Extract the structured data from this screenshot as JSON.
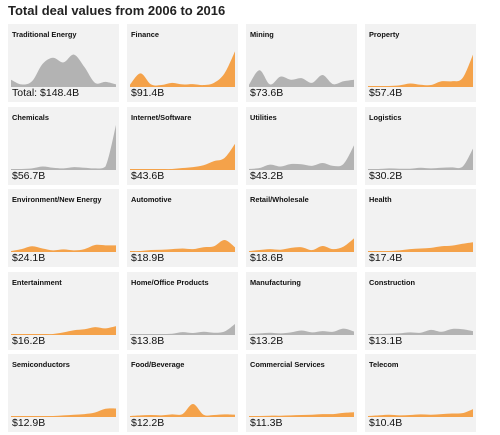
{
  "title": "Total deal values from 2006 to 2016",
  "colors": {
    "orange": "#f4a24a",
    "gray": "#b3b3b3",
    "tile_bg": "#f2f2f2"
  },
  "chart_data": [
    {
      "type": "area",
      "label": "Traditional Energy",
      "value_text": "Total: $148.4B",
      "color": "gray",
      "x": [
        2006,
        2007,
        2008,
        2009,
        2010,
        2011,
        2012,
        2013,
        2014,
        2015,
        2016
      ],
      "values": [
        2,
        0.5,
        1.5,
        7,
        9,
        7.5,
        10,
        6,
        1,
        1.3,
        0.5
      ]
    },
    {
      "type": "area",
      "label": "Finance",
      "value_text": "$91.4B",
      "color": "orange",
      "x": [
        2006,
        2007,
        2008,
        2009,
        2010,
        2011,
        2012,
        2013,
        2014,
        2015,
        2016
      ],
      "values": [
        0.4,
        4,
        0.5,
        0.3,
        1,
        0.5,
        0.6,
        0.3,
        1,
        4,
        11
      ]
    },
    {
      "type": "area",
      "label": "Mining",
      "value_text": "$73.6B",
      "color": "gray",
      "x": [
        2006,
        2007,
        2008,
        2009,
        2010,
        2011,
        2012,
        2013,
        2014,
        2015,
        2016
      ],
      "values": [
        0.4,
        5,
        0.5,
        3,
        2,
        2.5,
        1,
        3.5,
        0.6,
        1.5,
        2
      ]
    },
    {
      "type": "area",
      "label": "Property",
      "value_text": "$57.4B",
      "color": "orange",
      "x": [
        2006,
        2007,
        2008,
        2009,
        2010,
        2011,
        2012,
        2013,
        2014,
        2015,
        2016
      ],
      "values": [
        0,
        0,
        0,
        0.2,
        0.8,
        0.4,
        0.3,
        1.5,
        1.5,
        2.5,
        10
      ]
    },
    {
      "type": "area",
      "label": "Chemicals",
      "value_text": "$56.7B",
      "color": "gray",
      "x": [
        2006,
        2007,
        2008,
        2009,
        2010,
        2011,
        2012,
        2013,
        2014,
        2015,
        2016
      ],
      "values": [
        0,
        0,
        0.2,
        0.8,
        0.4,
        0.2,
        0.6,
        0.4,
        0.2,
        0.8,
        14
      ]
    },
    {
      "type": "area",
      "label": "Internet/Software",
      "value_text": "$43.6B",
      "color": "orange",
      "x": [
        2006,
        2007,
        2008,
        2009,
        2010,
        2011,
        2012,
        2013,
        2014,
        2015,
        2016
      ],
      "values": [
        0,
        0,
        0,
        0,
        0,
        0.3,
        0.6,
        1.2,
        2.5,
        3.5,
        8
      ]
    },
    {
      "type": "area",
      "label": "Utilities",
      "value_text": "$43.2B",
      "color": "gray",
      "x": [
        2006,
        2007,
        2008,
        2009,
        2010,
        2011,
        2012,
        2013,
        2014,
        2015,
        2016
      ],
      "values": [
        0,
        0.3,
        1.4,
        0.8,
        1.6,
        1.5,
        1,
        1.9,
        1,
        1.6,
        7.5
      ]
    },
    {
      "type": "area",
      "label": "Logistics",
      "value_text": "$30.2B",
      "color": "gray",
      "x": [
        2006,
        2007,
        2008,
        2009,
        2010,
        2011,
        2012,
        2013,
        2014,
        2015,
        2016
      ],
      "values": [
        0,
        0,
        0.2,
        0.1,
        0.1,
        0.4,
        0.2,
        0.4,
        0.5,
        0.7,
        6.5
      ]
    },
    {
      "type": "area",
      "label": "Environment/New Energy",
      "value_text": "$24.1B",
      "color": "orange",
      "x": [
        2006,
        2007,
        2008,
        2009,
        2010,
        2011,
        2012,
        2013,
        2014,
        2015,
        2016
      ],
      "values": [
        0,
        0.6,
        1.5,
        0.8,
        0.2,
        0.5,
        0.2,
        0.6,
        1.9,
        1.8,
        1.8
      ]
    },
    {
      "type": "area",
      "label": "Automotive",
      "value_text": "$18.9B",
      "color": "orange",
      "x": [
        2006,
        2007,
        2008,
        2009,
        2010,
        2011,
        2012,
        2013,
        2014,
        2015,
        2016
      ],
      "values": [
        0,
        0,
        0.3,
        0.4,
        0.6,
        0.8,
        0.6,
        1.2,
        1.5,
        3.5,
        1.2
      ]
    },
    {
      "type": "area",
      "label": "Retail/Wholesale",
      "value_text": "$18.6B",
      "color": "orange",
      "x": [
        2006,
        2007,
        2008,
        2009,
        2010,
        2011,
        2012,
        2013,
        2014,
        2015,
        2016
      ],
      "values": [
        0,
        0.3,
        0.6,
        0.4,
        1,
        1.2,
        0.3,
        1.6,
        0.6,
        1.4,
        4
      ]
    },
    {
      "type": "area",
      "label": "Health",
      "value_text": "$17.4B",
      "color": "orange",
      "x": [
        2006,
        2007,
        2008,
        2009,
        2010,
        2011,
        2012,
        2013,
        2014,
        2015,
        2016
      ],
      "values": [
        0,
        0,
        0,
        0.2,
        0.6,
        0.8,
        1,
        1.5,
        1.7,
        2.3,
        2.8
      ]
    },
    {
      "type": "area",
      "label": "Entertainment",
      "value_text": "$16.2B",
      "color": "orange",
      "x": [
        2006,
        2007,
        2008,
        2009,
        2010,
        2011,
        2012,
        2013,
        2014,
        2015,
        2016
      ],
      "values": [
        0,
        0,
        0,
        0,
        0,
        0.5,
        1.2,
        1.5,
        2.2,
        1.8,
        2.5
      ]
    },
    {
      "type": "area",
      "label": "Home/Office Products",
      "value_text": "$13.8B",
      "color": "gray",
      "x": [
        2006,
        2007,
        2008,
        2009,
        2010,
        2011,
        2012,
        2013,
        2014,
        2015,
        2016
      ],
      "values": [
        0,
        0,
        0,
        0,
        0.1,
        0.6,
        0.3,
        0.7,
        0.4,
        0.8,
        3.2
      ]
    },
    {
      "type": "area",
      "label": "Manufacturing",
      "value_text": "$13.2B",
      "color": "gray",
      "x": [
        2006,
        2007,
        2008,
        2009,
        2010,
        2011,
        2012,
        2013,
        2014,
        2015,
        2016
      ],
      "values": [
        0,
        0.2,
        0.4,
        0.2,
        0.5,
        1.1,
        0.5,
        0.9,
        0.7,
        1.7,
        0.8
      ]
    },
    {
      "type": "area",
      "label": "Construction",
      "value_text": "$13.1B",
      "color": "gray",
      "x": [
        2006,
        2007,
        2008,
        2009,
        2010,
        2011,
        2012,
        2013,
        2014,
        2015,
        2016
      ],
      "values": [
        0,
        0,
        0.1,
        0.2,
        0.5,
        0.4,
        1.3,
        0.7,
        1.6,
        1.5,
        0.9
      ]
    },
    {
      "type": "area",
      "label": "Semiconductors",
      "value_text": "$12.9B",
      "color": "orange",
      "x": [
        2006,
        2007,
        2008,
        2009,
        2010,
        2011,
        2012,
        2013,
        2014,
        2015,
        2016
      ],
      "values": [
        0,
        0,
        0,
        0,
        0,
        0.2,
        0.4,
        0.6,
        1.1,
        2.3,
        2.4
      ]
    },
    {
      "type": "area",
      "label": "Food/Beverage",
      "value_text": "$12.2B",
      "color": "orange",
      "x": [
        2006,
        2007,
        2008,
        2009,
        2010,
        2011,
        2012,
        2013,
        2014,
        2015,
        2016
      ],
      "values": [
        0,
        0.2,
        0.3,
        0.2,
        0.5,
        0.6,
        3.8,
        0.4,
        0.3,
        0.5,
        0.4
      ]
    },
    {
      "type": "area",
      "label": "Commercial Services",
      "value_text": "$11.3B",
      "color": "orange",
      "x": [
        2006,
        2007,
        2008,
        2009,
        2010,
        2011,
        2012,
        2013,
        2014,
        2015,
        2016
      ],
      "values": [
        0,
        0,
        0.1,
        0.1,
        0.2,
        0.3,
        0.4,
        0.6,
        0.6,
        1,
        1.2
      ]
    },
    {
      "type": "area",
      "label": "Telecom",
      "value_text": "$10.4B",
      "color": "orange",
      "x": [
        2006,
        2007,
        2008,
        2009,
        2010,
        2011,
        2012,
        2013,
        2014,
        2015,
        2016
      ],
      "values": [
        0,
        0.2,
        0.4,
        0.2,
        0.3,
        0.5,
        0.4,
        0.6,
        0.8,
        0.9,
        2.2
      ]
    }
  ]
}
